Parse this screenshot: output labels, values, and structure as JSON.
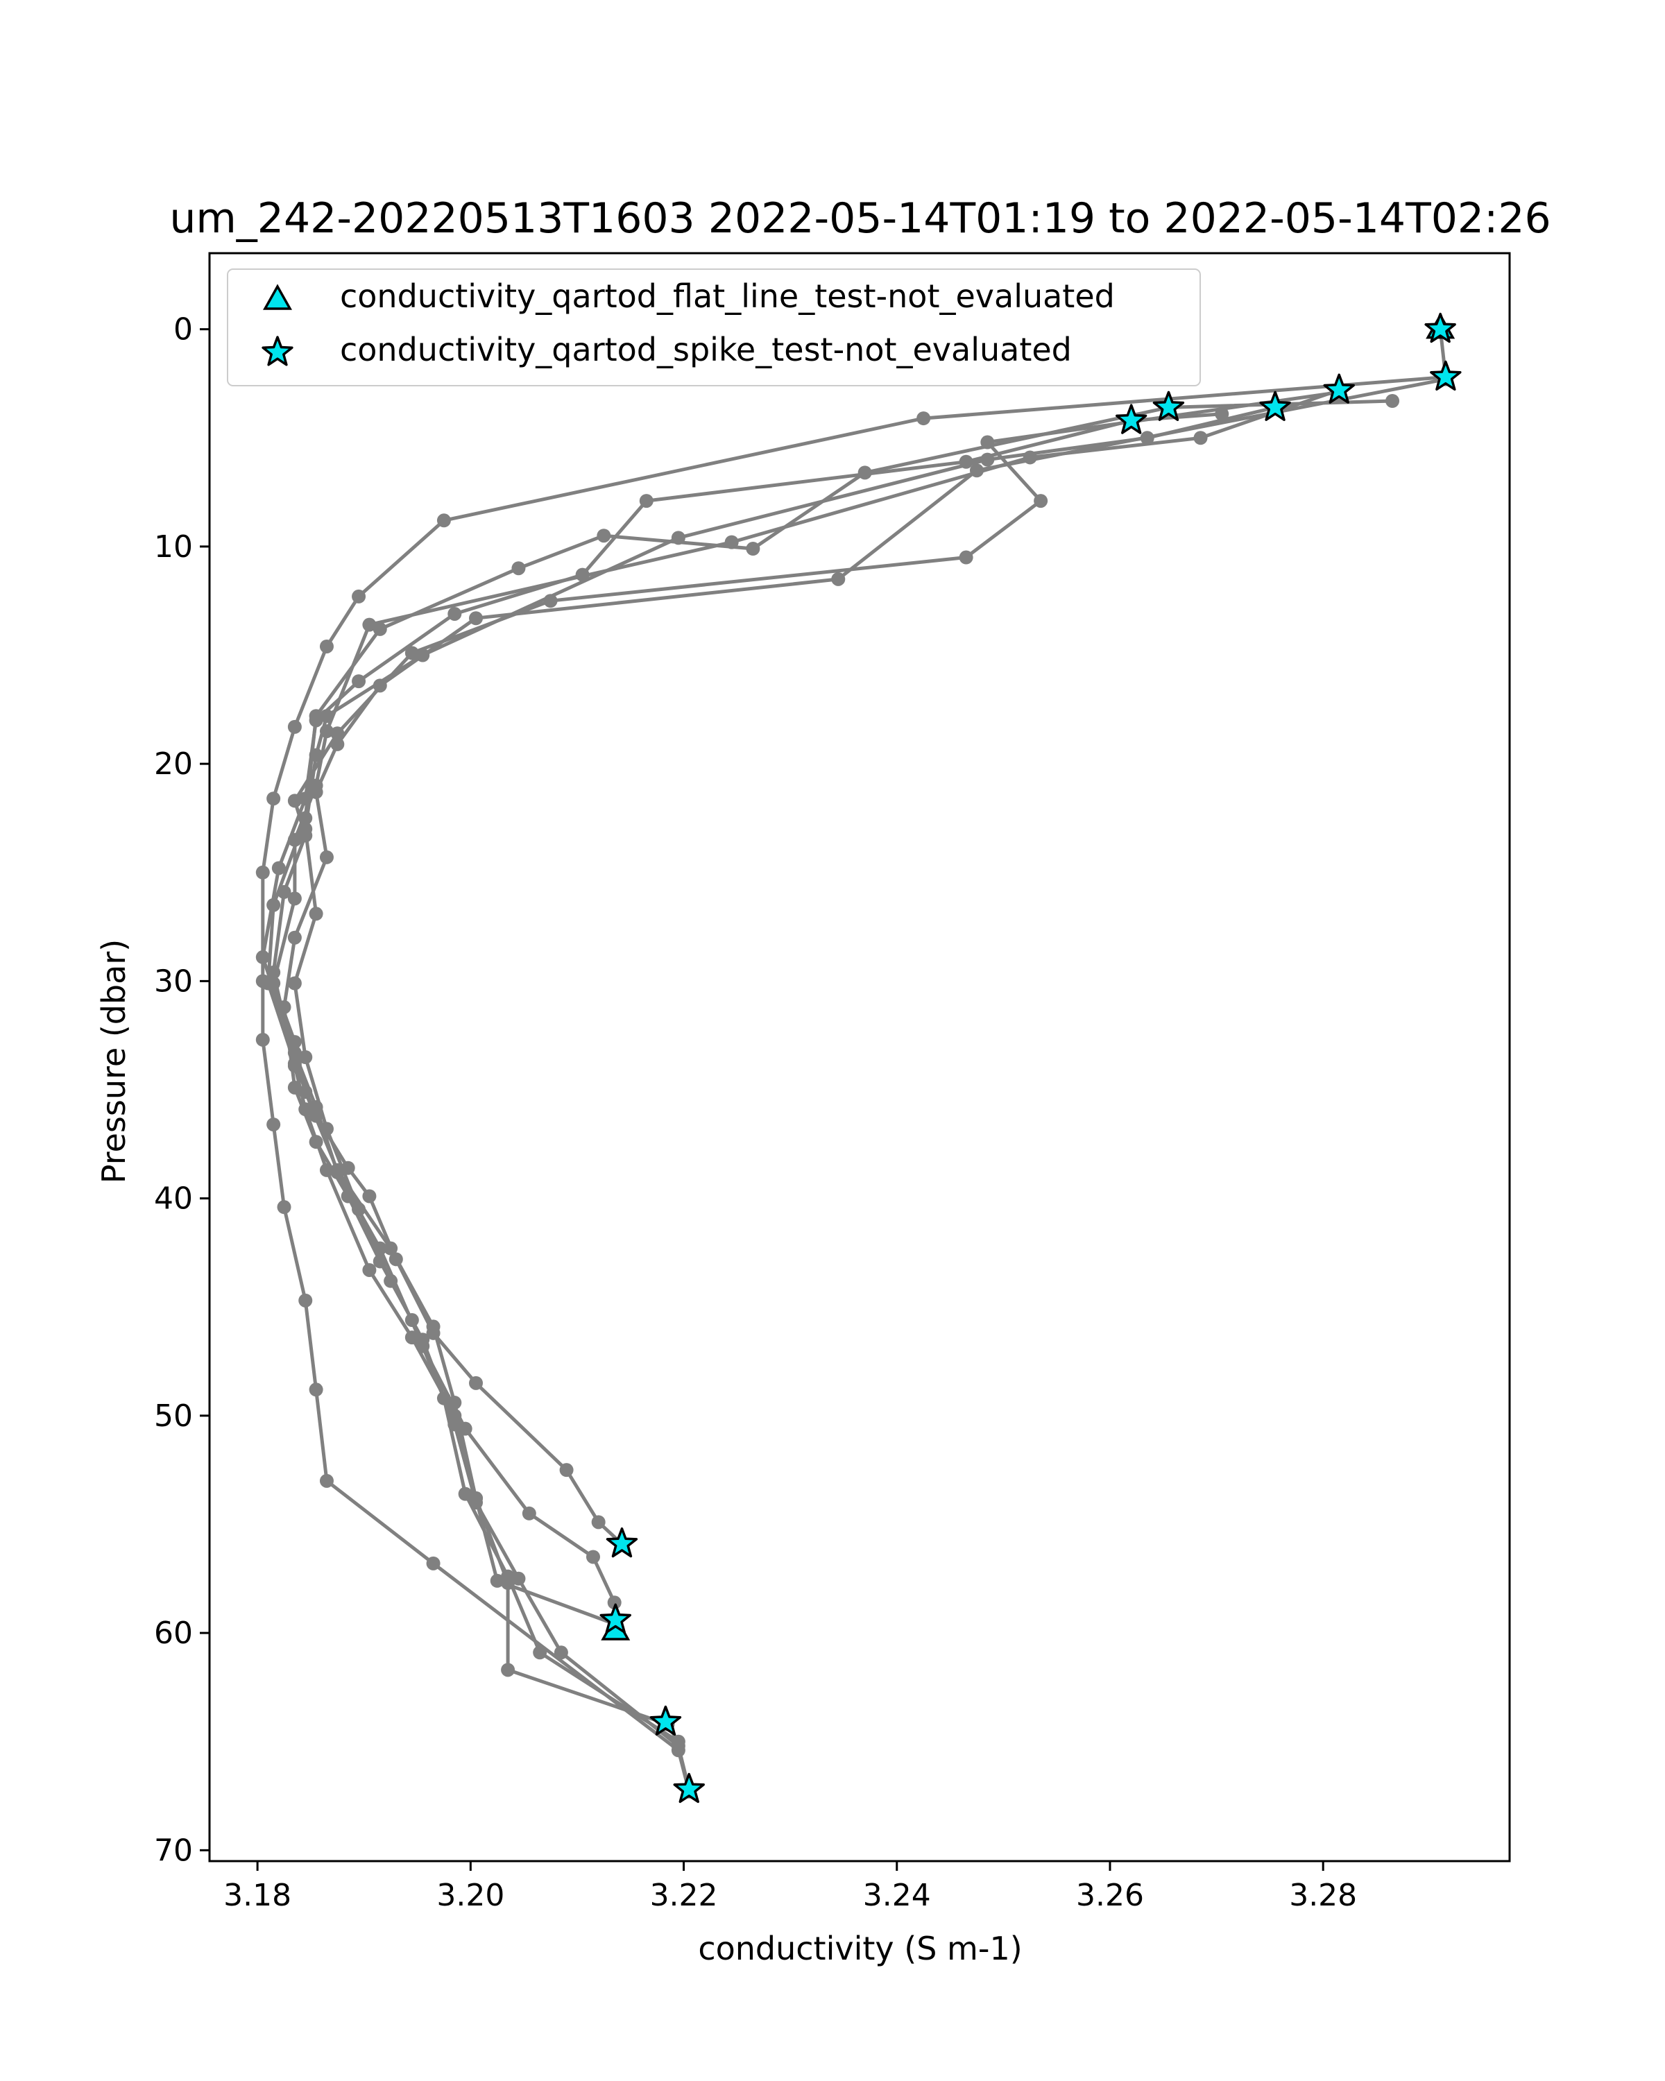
{
  "chart_data": {
    "type": "line",
    "title": "um_242-20220513T1603 2022-05-14T01:19 to 2022-05-14T02:26",
    "xlabel": "conductivity (S m-1)",
    "ylabel": "Pressure (dbar)",
    "xlim": [
      3.1755,
      3.2975
    ],
    "ylim": [
      70.5,
      -3.5
    ],
    "y_inverted": true,
    "xticks": [
      3.18,
      3.2,
      3.22,
      3.24,
      3.26,
      3.28
    ],
    "xtick_labels": [
      "3.18",
      "3.20",
      "3.22",
      "3.24",
      "3.26",
      "3.28"
    ],
    "yticks": [
      0,
      10,
      20,
      30,
      40,
      50,
      60,
      70
    ],
    "ytick_labels": [
      "0",
      "10",
      "20",
      "30",
      "40",
      "50",
      "60",
      "70"
    ],
    "grid": false,
    "legend_position": "top-left",
    "colors": {
      "line": "#808080",
      "marker_fill": "#00e5ee",
      "marker_edge": "#000000"
    },
    "legend": [
      {
        "label": "conductivity_qartod_flat_line_test-not_evaluated",
        "marker": "triangle"
      },
      {
        "label": "conductivity_qartod_spike_test-not_evaluated",
        "marker": "star"
      }
    ],
    "series": [
      {
        "points": [
          [
            3.2142,
            55.9
          ],
          [
            3.212,
            54.9
          ],
          [
            3.209,
            52.5
          ],
          [
            3.2005,
            48.5
          ],
          [
            3.1965,
            46.2
          ],
          [
            3.193,
            42.8
          ],
          [
            3.1905,
            39.9
          ],
          [
            3.1885,
            38.6
          ],
          [
            3.1855,
            36.2
          ],
          [
            3.1835,
            33.8
          ],
          [
            3.181,
            30.1
          ],
          [
            3.1815,
            26.5
          ],
          [
            3.1845,
            22.5
          ],
          [
            3.1855,
            17.8
          ],
          [
            3.1915,
            13.8
          ],
          [
            3.2045,
            11.0
          ],
          [
            3.2125,
            9.5
          ],
          [
            3.2265,
            10.1
          ],
          [
            3.237,
            6.6
          ],
          [
            3.2655,
            3.6
          ],
          [
            3.2865,
            3.3
          ]
        ]
      },
      {
        "points": [
          [
            3.2136,
            59.4
          ],
          [
            3.2135,
            58.6
          ],
          [
            3.2115,
            56.5
          ],
          [
            3.2055,
            54.5
          ],
          [
            3.1995,
            50.6
          ],
          [
            3.1955,
            46.8
          ],
          [
            3.1915,
            42.3
          ],
          [
            3.1875,
            38.8
          ],
          [
            3.1855,
            35.8
          ],
          [
            3.1835,
            33.3
          ],
          [
            3.1805,
            28.9
          ],
          [
            3.182,
            24.8
          ],
          [
            3.1845,
            21.6
          ],
          [
            3.1855,
            18.0
          ],
          [
            3.1895,
            16.2
          ],
          [
            3.1985,
            13.1
          ],
          [
            3.2105,
            11.3
          ],
          [
            3.2165,
            7.9
          ],
          [
            3.2465,
            6.1
          ],
          [
            3.262,
            4.2
          ],
          [
            3.2705,
            3.9
          ]
        ]
      },
      {
        "points": [
          [
            3.2136,
            59.9
          ],
          [
            3.2136,
            59.6
          ],
          [
            3.2025,
            57.6
          ],
          [
            3.2005,
            53.8
          ],
          [
            3.1985,
            50.0
          ],
          [
            3.1945,
            46.4
          ],
          [
            3.1905,
            43.3
          ],
          [
            3.1865,
            38.7
          ],
          [
            3.1845,
            35.9
          ],
          [
            3.1835,
            33.9
          ],
          [
            3.1815,
            29.6
          ],
          [
            3.1825,
            25.9
          ],
          [
            3.1845,
            23.3
          ],
          [
            3.1835,
            21.7
          ],
          [
            3.1875,
            18.6
          ],
          [
            3.1945,
            14.9
          ],
          [
            3.2075,
            12.5
          ],
          [
            3.2465,
            10.5
          ],
          [
            3.2535,
            7.9
          ],
          [
            3.2485,
            5.2
          ],
          [
            3.2815,
            2.9
          ]
        ]
      },
      {
        "points": [
          [
            3.2183,
            64.1
          ],
          [
            3.2195,
            65.0
          ],
          [
            3.2065,
            60.9
          ],
          [
            3.2035,
            57.4
          ],
          [
            3.1995,
            53.6
          ],
          [
            3.1975,
            49.2
          ],
          [
            3.1945,
            45.6
          ],
          [
            3.1915,
            42.9
          ],
          [
            3.1885,
            39.9
          ],
          [
            3.1855,
            37.4
          ],
          [
            3.1835,
            34.9
          ],
          [
            3.1825,
            31.2
          ],
          [
            3.1835,
            28.0
          ],
          [
            3.1865,
            24.3
          ],
          [
            3.1855,
            21.3
          ],
          [
            3.1875,
            19.1
          ],
          [
            3.1915,
            16.4
          ],
          [
            3.2005,
            13.3
          ],
          [
            3.2345,
            11.5
          ],
          [
            3.2475,
            6.5
          ],
          [
            3.2915,
            2.3
          ]
        ]
      },
      {
        "points": [
          [
            3.2205,
            67.2
          ],
          [
            3.2195,
            65.2
          ],
          [
            3.2085,
            60.9
          ],
          [
            3.2045,
            57.5
          ],
          [
            3.2005,
            54.0
          ],
          [
            3.1985,
            50.4
          ],
          [
            3.1955,
            46.5
          ],
          [
            3.1925,
            43.8
          ],
          [
            3.1895,
            40.5
          ],
          [
            3.1865,
            36.8
          ],
          [
            3.1845,
            33.5
          ],
          [
            3.1835,
            30.1
          ],
          [
            3.1855,
            26.9
          ],
          [
            3.1845,
            23.0
          ],
          [
            3.1855,
            19.6
          ],
          [
            3.1865,
            17.8
          ],
          [
            3.1955,
            15.0
          ],
          [
            3.2195,
            9.6
          ],
          [
            3.2485,
            6.0
          ],
          [
            3.2635,
            5.0
          ],
          [
            3.2755,
            3.6
          ]
        ]
      },
      {
        "points": [
          [
            3.2185,
            64.2
          ],
          [
            3.2035,
            61.7
          ],
          [
            3.2035,
            57.7
          ],
          [
            3.2005,
            53.8
          ],
          [
            3.1985,
            49.4
          ],
          [
            3.1965,
            45.9
          ],
          [
            3.1925,
            42.3
          ],
          [
            3.1875,
            38.7
          ],
          [
            3.1845,
            35.1
          ],
          [
            3.1835,
            32.8
          ],
          [
            3.1815,
            30.1
          ],
          [
            3.1835,
            26.2
          ],
          [
            3.1835,
            23.5
          ],
          [
            3.1855,
            21.0
          ],
          [
            3.1865,
            18.5
          ],
          [
            3.1905,
            13.6
          ],
          [
            3.2245,
            9.8
          ],
          [
            3.2525,
            5.9
          ],
          [
            3.2685,
            5.0
          ],
          [
            3.2815,
            2.8
          ]
        ]
      },
      {
        "points": [
          [
            3.2205,
            67.3
          ],
          [
            3.2195,
            65.4
          ],
          [
            3.1965,
            56.8
          ],
          [
            3.1865,
            53.0
          ],
          [
            3.1855,
            48.8
          ],
          [
            3.1845,
            44.7
          ],
          [
            3.1825,
            40.4
          ],
          [
            3.1815,
            36.6
          ],
          [
            3.1805,
            32.7
          ],
          [
            3.1805,
            30.0
          ],
          [
            3.1805,
            25.0
          ],
          [
            3.1815,
            21.6
          ],
          [
            3.1835,
            18.3
          ],
          [
            3.1865,
            14.6
          ],
          [
            3.1895,
            12.3
          ],
          [
            3.1975,
            8.8
          ],
          [
            3.2425,
            4.1
          ],
          [
            3.2915,
            2.2
          ],
          [
            3.291,
            0.0
          ]
        ]
      }
    ],
    "flagged_points": [
      {
        "test": "flat_line",
        "marker": "triangle",
        "points": [
          [
            3.2136,
            59.9
          ],
          [
            3.291,
            0.0
          ]
        ]
      },
      {
        "test": "spike",
        "marker": "star",
        "points": [
          [
            3.291,
            0.0
          ],
          [
            3.2915,
            2.2
          ],
          [
            3.2815,
            2.8
          ],
          [
            3.2755,
            3.6
          ],
          [
            3.2655,
            3.6
          ],
          [
            3.262,
            4.2
          ],
          [
            3.2142,
            55.9
          ],
          [
            3.2136,
            59.4
          ],
          [
            3.2183,
            64.1
          ],
          [
            3.2205,
            67.2
          ]
        ]
      }
    ]
  }
}
